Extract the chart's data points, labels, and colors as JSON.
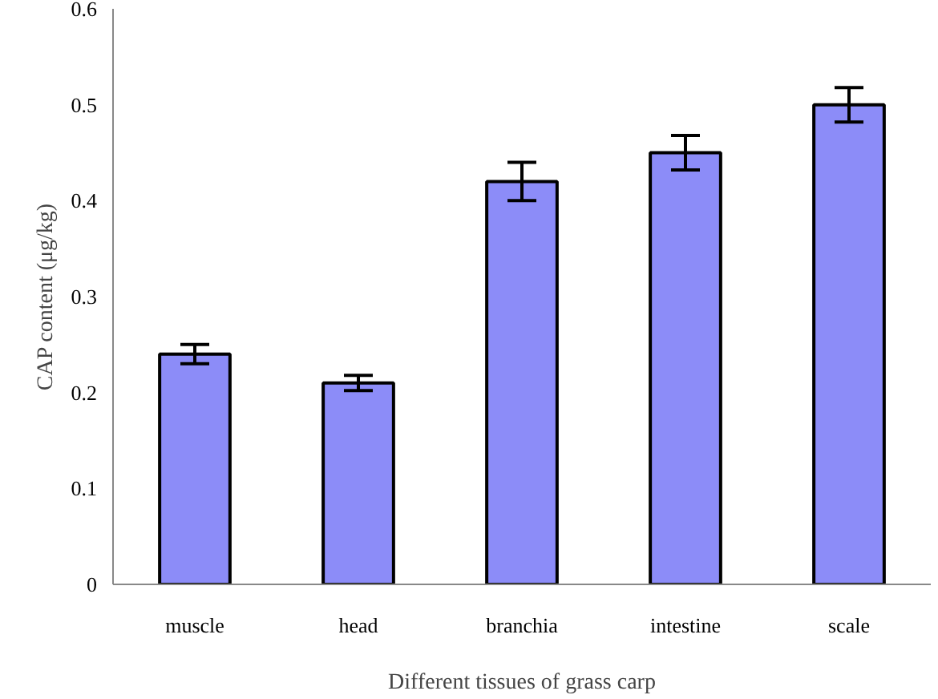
{
  "chart_data": {
    "type": "bar",
    "xlabel": "Different tissues of grass carp",
    "ylabel": "CAP content (μg/kg)",
    "categories": [
      "muscle",
      "head",
      "branchia",
      "intestine",
      "scale"
    ],
    "values": [
      0.24,
      0.21,
      0.42,
      0.45,
      0.5
    ],
    "errors": [
      0.01,
      0.008,
      0.02,
      0.018,
      0.018
    ],
    "color": "#8c8cf8",
    "ylim": [
      0,
      0.6
    ],
    "yticks": [
      {
        "value": 0,
        "label": "0"
      },
      0.1,
      0.2,
      0.3,
      0.4,
      0.5,
      0.6
    ],
    "grid": false
  }
}
